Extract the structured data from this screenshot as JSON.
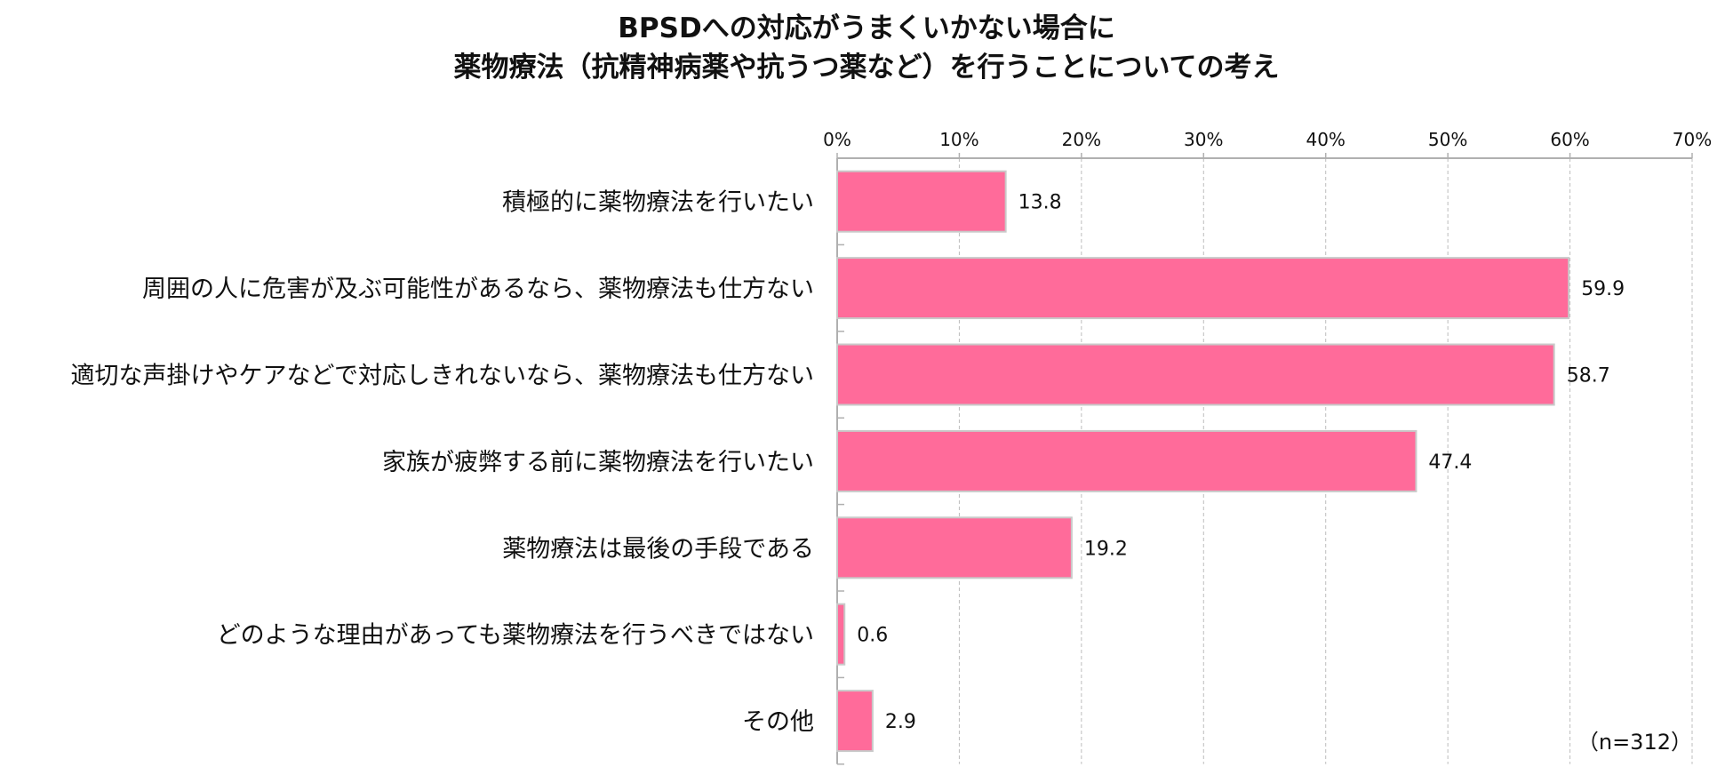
{
  "chart_data": {
    "type": "bar",
    "orientation": "horizontal",
    "title": "BPSDへの対応がうまくいかない場合に\n薬物療法（抗精神病薬や抗うつ薬など）を行うことについての考え",
    "title_lines": [
      "BPSDへの対応がうまくいかない場合に",
      "薬物療法（抗精神病薬や抗うつ薬など）を行うことについての考え"
    ],
    "categories": [
      "積極的に薬物療法を行いたい",
      "周囲の人に危害が及ぶ可能性があるなら、薬物療法も仕方ない",
      "適切な声掛けやケアなどで対応しきれないなら、薬物療法も仕方ない",
      "家族が疲弊する前に薬物療法を行いたい",
      "薬物療法は最後の手段である",
      "どのような理由があっても薬物療法を行うべきではない",
      "その他"
    ],
    "values": [
      13.8,
      59.9,
      58.7,
      47.4,
      19.2,
      0.6,
      2.9
    ],
    "value_labels": [
      "13.8",
      "59.9",
      "58.7",
      "47.4",
      "19.2",
      "0.6",
      "2.9"
    ],
    "xlim": [
      0,
      70
    ],
    "x_ticks": [
      0,
      10,
      20,
      30,
      40,
      50,
      60,
      70
    ],
    "x_tick_labels": [
      "0%",
      "10%",
      "20%",
      "30%",
      "40%",
      "50%",
      "60%",
      "70%"
    ],
    "xlabel": "",
    "ylabel": "",
    "grid": true,
    "axis_position": "top",
    "note": "（n=312）",
    "colors": {
      "bar_fill": "#ff6b9a",
      "bar_stroke": "#c9c9c9",
      "grid": "#bdbdbd",
      "axis": "#b0b0b0",
      "text": "#111111"
    }
  }
}
